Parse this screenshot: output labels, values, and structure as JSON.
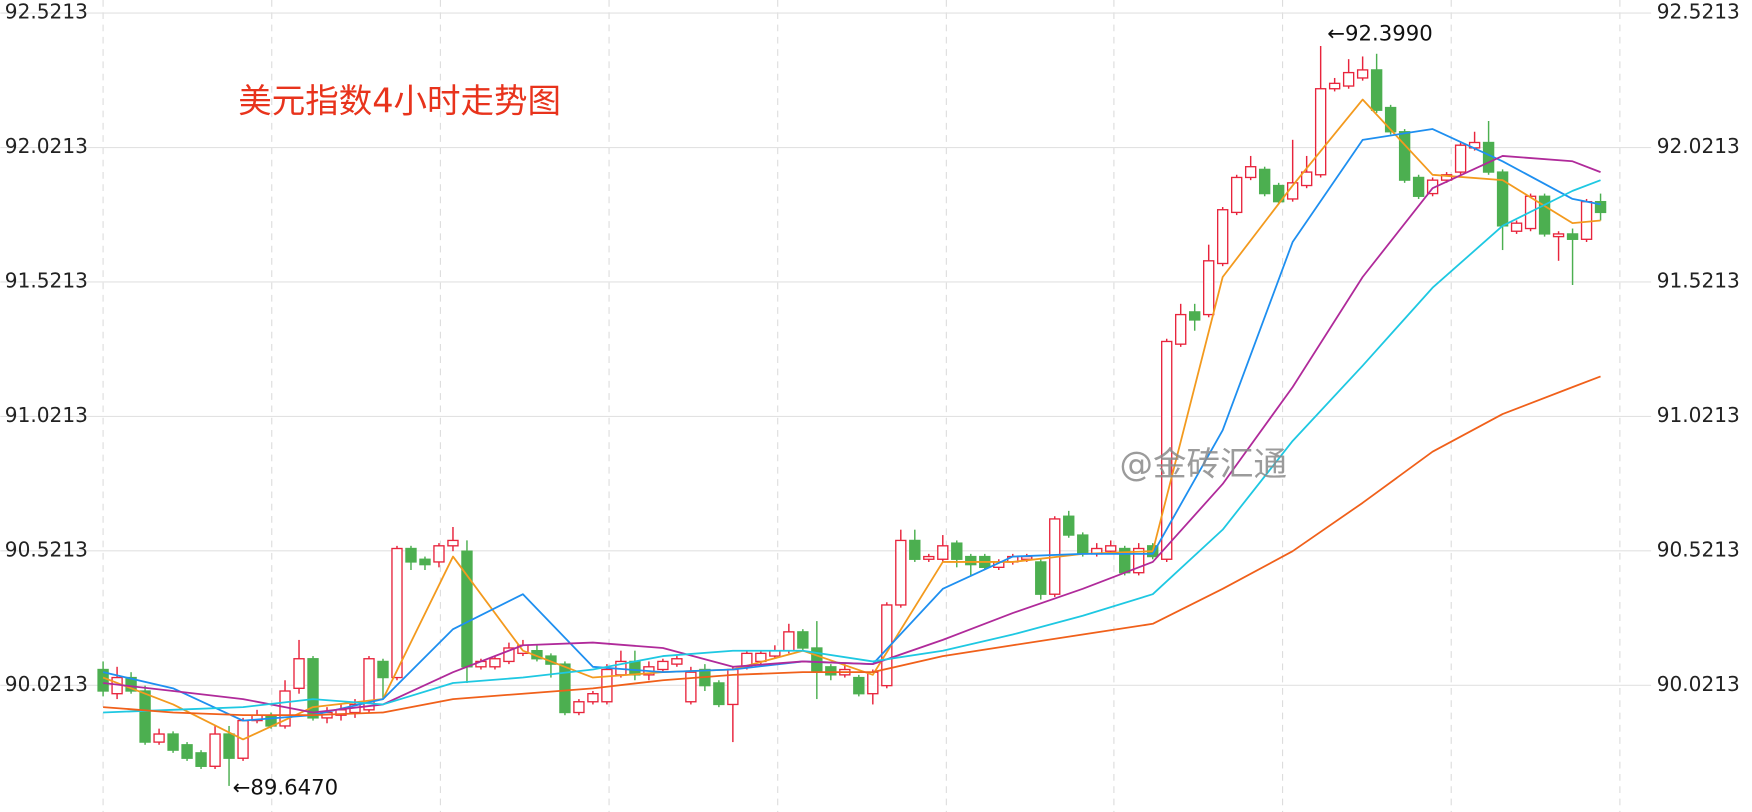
{
  "chart_data": {
    "type": "candlestick",
    "title": "美元指数4小时走势图",
    "watermark": "@金砖汇通",
    "annotations": [
      "←92.3990",
      "←89.6470"
    ],
    "up_color": "#e8243c",
    "down_color": "#4caf50",
    "grid": true,
    "ylim": [
      89.55,
      92.57
    ],
    "yticks": [
      90.0213,
      90.5213,
      91.0213,
      91.5213,
      92.0213,
      92.5213
    ],
    "open": [
      90.08,
      89.99,
      90.05,
      90.0,
      89.81,
      89.84,
      89.8,
      89.77,
      89.72,
      89.84,
      89.75,
      89.89,
      89.91,
      89.87,
      90.01,
      90.12,
      89.9,
      89.91,
      89.92,
      89.93,
      90.11,
      90.05,
      90.53,
      90.49,
      90.48,
      90.54,
      90.52,
      90.09,
      90.09,
      90.11,
      90.14,
      90.15,
      90.13,
      90.1,
      89.92,
      89.96,
      89.96,
      90.06,
      90.11,
      90.06,
      90.08,
      90.1,
      89.96,
      90.08,
      90.03,
      89.95,
      90.09,
      90.11,
      90.13,
      90.15,
      90.22,
      90.16,
      90.09,
      90.06,
      90.05,
      89.99,
      90.02,
      90.32,
      90.56,
      90.49,
      90.49,
      90.55,
      90.5,
      90.5,
      90.46,
      90.48,
      90.49,
      90.48,
      90.36,
      90.65,
      90.58,
      90.51,
      90.52,
      90.53,
      90.44,
      90.54,
      90.49,
      91.29,
      91.41,
      91.4,
      91.59,
      91.78,
      91.91,
      91.94,
      91.88,
      91.83,
      91.88,
      91.92,
      92.24,
      92.25,
      92.28,
      92.31,
      92.17,
      92.08,
      91.91,
      91.85,
      91.9,
      91.93,
      92.02,
      92.04,
      91.93,
      91.71,
      91.72,
      91.84,
      91.69,
      91.7,
      91.68,
      91.82
    ],
    "high": [
      90.11,
      90.09,
      90.07,
      90.02,
      89.86,
      89.85,
      89.81,
      89.78,
      89.87,
      89.87,
      89.9,
      89.93,
      89.92,
      90.04,
      90.19,
      90.13,
      89.94,
      89.95,
      89.97,
      90.13,
      90.12,
      90.54,
      90.54,
      90.5,
      90.55,
      90.61,
      90.56,
      90.12,
      90.13,
      90.18,
      90.19,
      90.17,
      90.14,
      90.11,
      89.97,
      90.0,
      90.1,
      90.15,
      90.15,
      90.11,
      90.12,
      90.13,
      90.09,
      90.1,
      90.04,
      90.09,
      90.15,
      90.15,
      90.17,
      90.25,
      90.23,
      90.26,
      90.1,
      90.1,
      90.06,
      90.08,
      90.33,
      90.6,
      90.6,
      90.51,
      90.58,
      90.56,
      90.51,
      90.51,
      90.49,
      90.51,
      90.51,
      90.49,
      90.65,
      90.67,
      90.59,
      90.55,
      90.56,
      90.54,
      90.55,
      90.55,
      91.31,
      91.44,
      91.44,
      91.66,
      91.8,
      91.92,
      91.99,
      91.95,
      91.89,
      92.05,
      91.99,
      92.399,
      92.28,
      92.35,
      92.36,
      92.37,
      92.18,
      92.09,
      91.92,
      91.91,
      91.93,
      92.04,
      92.08,
      92.12,
      91.94,
      91.75,
      91.85,
      91.85,
      91.71,
      91.72,
      91.83,
      91.85
    ],
    "low": [
      89.98,
      89.97,
      89.99,
      89.8,
      89.8,
      89.77,
      89.74,
      89.71,
      89.71,
      89.647,
      89.74,
      89.88,
      89.86,
      89.86,
      89.99,
      89.89,
      89.88,
      89.89,
      89.9,
      89.92,
      89.97,
      90.04,
      90.45,
      90.45,
      90.46,
      90.52,
      90.03,
      90.08,
      90.08,
      90.1,
      90.13,
      90.11,
      90.05,
      89.91,
      89.91,
      89.95,
      89.95,
      90.05,
      90.04,
      90.04,
      90.07,
      90.09,
      89.95,
      90.0,
      89.94,
      89.81,
      90.08,
      90.1,
      90.12,
      90.14,
      90.15,
      89.97,
      90.04,
      90.05,
      89.98,
      89.95,
      90.01,
      90.31,
      90.48,
      90.48,
      90.48,
      90.46,
      90.43,
      90.45,
      90.45,
      90.47,
      90.48,
      90.34,
      90.35,
      90.57,
      90.5,
      90.5,
      90.51,
      90.43,
      90.43,
      90.49,
      90.48,
      91.28,
      91.34,
      91.39,
      91.58,
      91.77,
      91.9,
      91.84,
      91.81,
      91.82,
      91.87,
      91.91,
      92.23,
      92.24,
      92.27,
      92.15,
      92.07,
      91.89,
      91.83,
      91.84,
      91.89,
      91.92,
      92.01,
      91.92,
      91.64,
      91.7,
      91.71,
      91.69,
      91.6,
      91.51,
      91.67,
      91.75
    ],
    "close": [
      90.0,
      90.05,
      90.0,
      89.81,
      89.84,
      89.78,
      89.75,
      89.72,
      89.84,
      89.75,
      89.89,
      89.91,
      89.87,
      90.0,
      90.12,
      89.9,
      89.92,
      89.93,
      89.95,
      90.12,
      90.05,
      90.53,
      90.48,
      90.47,
      90.54,
      90.56,
      90.09,
      90.11,
      90.12,
      90.16,
      90.17,
      90.12,
      90.1,
      89.92,
      89.96,
      89.99,
      90.08,
      90.11,
      90.06,
      90.09,
      90.11,
      90.12,
      90.07,
      90.02,
      89.95,
      90.08,
      90.14,
      90.14,
      90.15,
      90.22,
      90.16,
      90.07,
      90.06,
      90.08,
      89.99,
      90.07,
      90.32,
      90.56,
      90.49,
      90.5,
      90.54,
      90.49,
      90.47,
      90.46,
      90.48,
      90.5,
      90.5,
      90.36,
      90.64,
      90.58,
      90.51,
      90.53,
      90.54,
      90.44,
      90.53,
      90.5,
      91.3,
      91.4,
      91.38,
      91.6,
      91.79,
      91.91,
      91.95,
      91.85,
      91.82,
      91.89,
      91.93,
      92.24,
      92.26,
      92.3,
      92.31,
      92.16,
      92.08,
      91.9,
      91.84,
      91.9,
      91.92,
      92.03,
      92.04,
      91.93,
      91.73,
      91.74,
      91.84,
      91.7,
      91.7,
      91.68,
      91.82,
      91.78
    ],
    "series": [
      {
        "color": "#f39a1e",
        "x": [
          0,
          5,
          10,
          15,
          20,
          25,
          30,
          35,
          40,
          45,
          50,
          55,
          60,
          65,
          70,
          75,
          80,
          85,
          90,
          95,
          100,
          105,
          107
        ],
        "values": [
          90.05,
          89.95,
          89.82,
          89.94,
          89.97,
          90.5,
          90.15,
          90.05,
          90.07,
          90.08,
          90.15,
          90.06,
          90.48,
          90.48,
          90.51,
          90.52,
          91.54,
          91.88,
          92.2,
          91.92,
          91.9,
          91.74,
          91.75
        ]
      },
      {
        "color": "#1e8ff0",
        "x": [
          0,
          5,
          10,
          15,
          20,
          25,
          30,
          35,
          40,
          45,
          50,
          55,
          60,
          65,
          70,
          75,
          80,
          85,
          90,
          95,
          100,
          105,
          107
        ],
        "values": [
          90.07,
          90.01,
          89.89,
          89.91,
          89.97,
          90.23,
          90.36,
          90.09,
          90.07,
          90.08,
          90.11,
          90.1,
          90.38,
          90.5,
          90.51,
          90.51,
          90.97,
          91.67,
          92.05,
          92.09,
          91.97,
          91.83,
          91.81
        ]
      },
      {
        "color": "#b02a9a",
        "x": [
          0,
          5,
          10,
          15,
          20,
          25,
          30,
          35,
          40,
          45,
          50,
          55,
          60,
          65,
          70,
          75,
          80,
          85,
          90,
          95,
          100,
          105,
          107
        ],
        "values": [
          90.03,
          90.0,
          89.97,
          89.92,
          89.95,
          90.07,
          90.17,
          90.18,
          90.16,
          90.09,
          90.11,
          90.1,
          90.19,
          90.29,
          90.38,
          90.48,
          90.77,
          91.13,
          91.54,
          91.87,
          91.99,
          91.97,
          91.93
        ]
      },
      {
        "color": "#1ec8e2",
        "x": [
          0,
          5,
          10,
          15,
          20,
          25,
          30,
          35,
          40,
          45,
          50,
          55,
          60,
          65,
          70,
          75,
          80,
          85,
          90,
          95,
          100,
          105,
          107
        ],
        "values": [
          89.92,
          89.93,
          89.94,
          89.97,
          89.95,
          90.03,
          90.05,
          90.08,
          90.13,
          90.15,
          90.15,
          90.11,
          90.15,
          90.21,
          90.28,
          90.36,
          90.6,
          90.93,
          91.21,
          91.5,
          91.73,
          91.86,
          91.9
        ]
      },
      {
        "color": "#f0601a",
        "x": [
          0,
          5,
          10,
          15,
          20,
          25,
          30,
          35,
          40,
          45,
          50,
          55,
          60,
          65,
          70,
          75,
          80,
          85,
          90,
          95,
          100,
          105,
          107
        ],
        "values": [
          89.94,
          89.92,
          89.91,
          89.91,
          89.92,
          89.97,
          89.99,
          90.01,
          90.04,
          90.06,
          90.07,
          90.07,
          90.13,
          90.17,
          90.21,
          90.25,
          90.38,
          90.52,
          90.7,
          90.89,
          91.03,
          91.13,
          91.17
        ]
      }
    ]
  }
}
